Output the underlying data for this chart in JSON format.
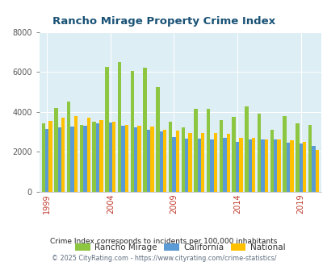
{
  "title": "Rancho Mirage Property Crime Index",
  "years": [
    1999,
    2000,
    2001,
    2002,
    2003,
    2004,
    2005,
    2006,
    2007,
    2008,
    2009,
    2010,
    2011,
    2012,
    2013,
    2014,
    2015,
    2016,
    2017,
    2018,
    2019,
    2020
  ],
  "rancho_mirage": [
    3400,
    4200,
    4500,
    3350,
    3500,
    6250,
    6500,
    6050,
    6200,
    5250,
    3500,
    3200,
    4150,
    4150,
    3600,
    3750,
    4250,
    3900,
    3100,
    3800,
    3400,
    3350
  ],
  "california": [
    3150,
    3200,
    3250,
    3300,
    3400,
    3450,
    3300,
    3200,
    3100,
    3000,
    2750,
    2650,
    2650,
    2600,
    2700,
    2500,
    2600,
    2600,
    2600,
    2450,
    2400,
    2300
  ],
  "national": [
    3550,
    3700,
    3800,
    3700,
    3600,
    3500,
    3350,
    3300,
    3250,
    3100,
    3050,
    2950,
    2950,
    2950,
    2900,
    2700,
    2700,
    2600,
    2600,
    2550,
    2500,
    2100
  ],
  "bar_colors": {
    "rancho_mirage": "#8dc641",
    "california": "#5b9bd5",
    "national": "#ffc000"
  },
  "plot_bg": "#ddeef4",
  "ylim": [
    0,
    8000
  ],
  "yticks": [
    0,
    2000,
    4000,
    6000,
    8000
  ],
  "xtick_years": [
    1999,
    2004,
    2009,
    2014,
    2019
  ],
  "legend_labels": [
    "Rancho Mirage",
    "California",
    "National"
  ],
  "footnote1": "Crime Index corresponds to incidents per 100,000 inhabitants",
  "footnote2": "© 2025 CityRating.com - https://www.cityrating.com/crime-statistics/",
  "title_color": "#1a5276",
  "footnote1_color": "#222222",
  "footnote2_color": "#5d6d7e",
  "xtick_color": "#c0392b",
  "ytick_color": "#555555"
}
